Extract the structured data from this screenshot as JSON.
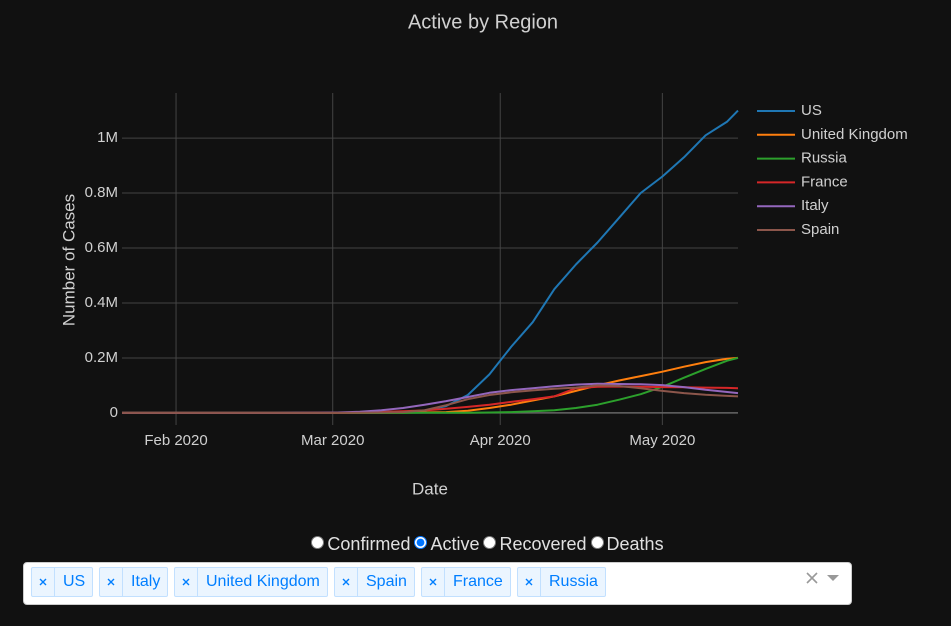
{
  "chart_data": {
    "type": "line",
    "title": "Active by Region",
    "x_label": "Date",
    "y_label": "Number of Cases",
    "x": [
      0,
      4,
      8,
      12,
      16,
      20,
      24,
      28,
      32,
      36,
      40,
      44,
      48,
      52,
      56,
      60,
      64,
      68,
      72,
      76,
      80,
      84,
      88,
      92,
      96,
      100,
      104,
      108,
      112,
      114
    ],
    "xlim": [
      0,
      114
    ],
    "xticks": [
      {
        "value": 10,
        "label": "Feb 2020"
      },
      {
        "value": 39,
        "label": "Mar 2020"
      },
      {
        "value": 70,
        "label": "Apr 2020"
      },
      {
        "value": 100,
        "label": "May 2020"
      }
    ],
    "ylim": [
      -44000,
      1164000
    ],
    "yticks": [
      0,
      {
        "value": 200000,
        "label": "0.2M"
      },
      {
        "value": 400000,
        "label": "0.4M"
      },
      {
        "value": 600000,
        "label": "0.6M"
      },
      {
        "value": 800000,
        "label": "0.8M"
      },
      {
        "value": 1000000,
        "label": "1M"
      }
    ],
    "grid": true,
    "legend": "right",
    "series": [
      {
        "name": "US",
        "color": "#1f77b4",
        "values": [
          1,
          5,
          8,
          11,
          12,
          13,
          20,
          30,
          50,
          60,
          100,
          200,
          500,
          2000,
          8000,
          25000,
          65000,
          140000,
          240000,
          330000,
          450000,
          540000,
          620000,
          710000,
          800000,
          860000,
          930000,
          1010000,
          1060000,
          1100000
        ]
      },
      {
        "name": "United Kingdom",
        "color": "#ff7f0e",
        "values": [
          0,
          0,
          2,
          5,
          8,
          8,
          8,
          12,
          20,
          40,
          80,
          200,
          500,
          1000,
          2000,
          3000,
          8000,
          18000,
          30000,
          45000,
          60000,
          80000,
          100000,
          118000,
          134000,
          150000,
          168000,
          185000,
          197000,
          200000
        ]
      },
      {
        "name": "Russia",
        "color": "#2ca02c",
        "values": [
          0,
          0,
          0,
          2,
          2,
          2,
          2,
          2,
          2,
          3,
          5,
          20,
          100,
          200,
          300,
          400,
          500,
          1500,
          3000,
          6000,
          10000,
          18000,
          30000,
          48000,
          68000,
          95000,
          128000,
          160000,
          190000,
          200000
        ]
      },
      {
        "name": "France",
        "color": "#d62728",
        "values": [
          0,
          0,
          3,
          6,
          10,
          10,
          10,
          30,
          100,
          300,
          700,
          1500,
          3500,
          6000,
          9000,
          15000,
          22000,
          30000,
          40000,
          50000,
          60000,
          90000,
          95000,
          96000,
          95000,
          94000,
          93000,
          92000,
          91000,
          90000
        ]
      },
      {
        "name": "Italy",
        "color": "#9467bd",
        "values": [
          0,
          0,
          0,
          0,
          3,
          3,
          3,
          3,
          300,
          800,
          1500,
          4000,
          10000,
          18000,
          30000,
          43000,
          58000,
          73000,
          83000,
          90000,
          97000,
          103000,
          106000,
          105000,
          104000,
          101000,
          94000,
          84000,
          76000,
          72000
        ]
      },
      {
        "name": "Spain",
        "color": "#8c564b",
        "values": [
          0,
          0,
          0,
          0,
          0,
          2,
          2,
          2,
          2,
          10,
          100,
          500,
          1500,
          3000,
          10000,
          28000,
          50000,
          65000,
          75000,
          82000,
          88000,
          92000,
          100000,
          98000,
          90000,
          80000,
          72000,
          66000,
          62000,
          60000
        ]
      }
    ]
  },
  "controls": {
    "radio": {
      "options": [
        "Confirmed",
        "Active",
        "Recovered",
        "Deaths"
      ],
      "selected": "Active"
    },
    "dropdown": {
      "tags": [
        "US",
        "Italy",
        "United Kingdom",
        "Spain",
        "France",
        "Russia"
      ]
    }
  }
}
